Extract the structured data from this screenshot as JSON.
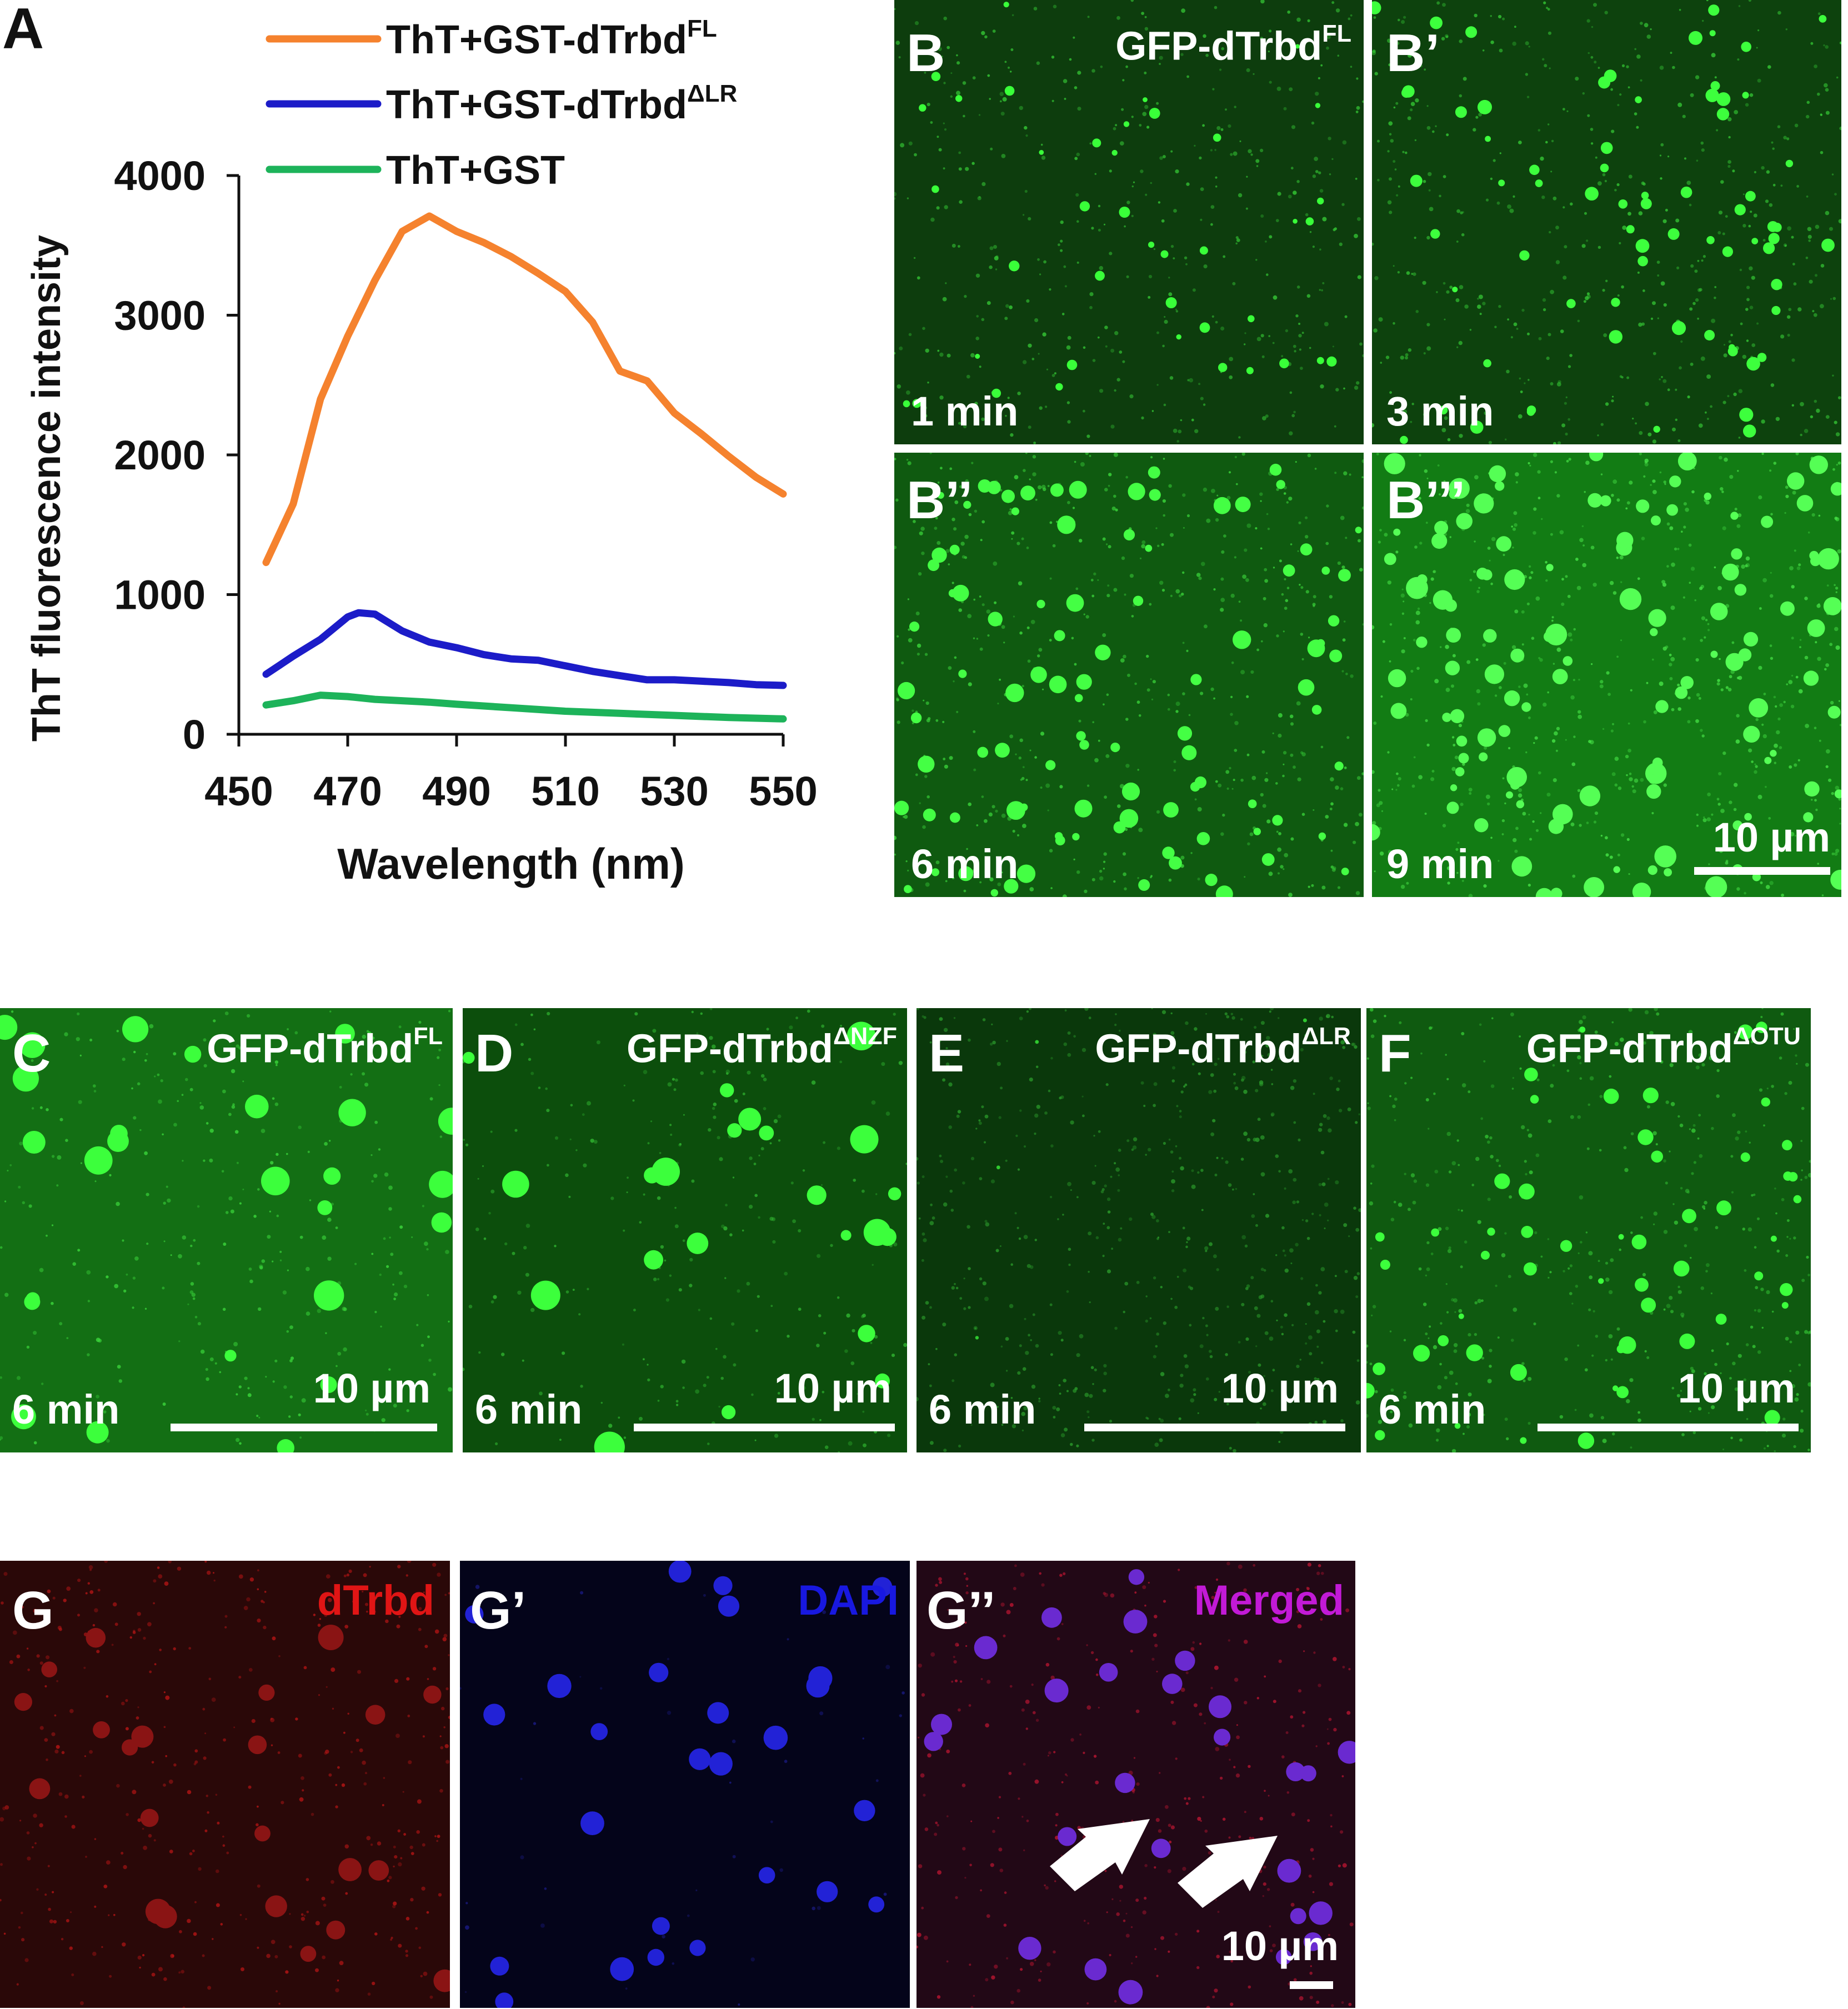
{
  "panelA": {
    "label": "A",
    "chart_data": {
      "type": "line",
      "title": "",
      "xlabel": "Wavelength (nm)",
      "ylabel": "ThT fluorescence intensity",
      "xlim": [
        450,
        550
      ],
      "ylim": [
        0,
        4000
      ],
      "xticks": [
        "450",
        "470",
        "490",
        "510",
        "530",
        "550"
      ],
      "yticks": [
        "0",
        "1000",
        "2000",
        "3000",
        "4000"
      ],
      "legend_position": "top",
      "series": [
        {
          "name": "ThT+GST-dTrbdFL",
          "legend_main": "ThT+GST-dTrbd",
          "legend_sup": "FL",
          "color": "#F5822E",
          "x": [
            455,
            460,
            465,
            470,
            475,
            480,
            485,
            490,
            495,
            500,
            505,
            510,
            515,
            520,
            525,
            530,
            535,
            540,
            545,
            550
          ],
          "y": [
            1230,
            1650,
            2400,
            2850,
            3250,
            3600,
            3710,
            3600,
            3520,
            3420,
            3300,
            3170,
            2950,
            2600,
            2530,
            2300,
            2150,
            1990,
            1840,
            1720
          ]
        },
        {
          "name": "ThT+GST-dTrbdΔLR",
          "legend_main": "ThT+GST-dTrbd",
          "legend_sup": "ΔLR",
          "color": "#1C1CC8",
          "x": [
            455,
            460,
            465,
            470,
            472,
            475,
            480,
            485,
            490,
            495,
            500,
            505,
            510,
            515,
            520,
            525,
            530,
            535,
            540,
            545,
            550
          ],
          "y": [
            430,
            560,
            680,
            840,
            870,
            860,
            740,
            660,
            620,
            570,
            540,
            530,
            490,
            450,
            420,
            390,
            390,
            380,
            370,
            355,
            350
          ]
        },
        {
          "name": "ThT+GST",
          "legend_main": "ThT+GST",
          "legend_sup": "",
          "color": "#1DB35A",
          "x": [
            455,
            460,
            465,
            470,
            475,
            480,
            485,
            490,
            500,
            510,
            520,
            530,
            540,
            550
          ],
          "y": [
            210,
            240,
            280,
            270,
            250,
            240,
            230,
            215,
            190,
            165,
            150,
            135,
            120,
            110
          ]
        }
      ]
    }
  },
  "panelsB": [
    {
      "label": "B",
      "title_main": "GFP-dTrbd",
      "title_sup": "FL",
      "time": "1 min"
    },
    {
      "label": "B’",
      "title_main": "",
      "title_sup": "",
      "time": "3 min"
    },
    {
      "label": "B’’",
      "title_main": "",
      "title_sup": "",
      "time": "6 min"
    },
    {
      "label": "B’’’",
      "title_main": "",
      "title_sup": "",
      "time": "9 min",
      "scale_bar": "10 µm"
    }
  ],
  "panelsCF": [
    {
      "label": "C",
      "title_main": "GFP-dTrbd",
      "title_sup": "FL",
      "time": "6 min",
      "scale_bar": "10 µm"
    },
    {
      "label": "D",
      "title_main": "GFP-dTrbd",
      "title_sup": "ΔNZF",
      "time": "6 min",
      "scale_bar": "10 µm"
    },
    {
      "label": "E",
      "title_main": "GFP-dTrbd",
      "title_sup": "ΔLR",
      "time": "6 min",
      "scale_bar": "10 µm"
    },
    {
      "label": "F",
      "title_main": "GFP-dTrbd",
      "title_sup": "ΔOTU",
      "time": "6 min",
      "scale_bar": "10 µm"
    }
  ],
  "panelsG": [
    {
      "label": "G",
      "channel": "dTrbd",
      "channel_color": "#E01515"
    },
    {
      "label": "G’",
      "channel": "DAPI",
      "channel_color": "#1818E0"
    },
    {
      "label": "G’’",
      "channel": "Merged",
      "channel_color": "#C21AD6",
      "scale_bar": "10 µm"
    }
  ],
  "icons": {
    "arrow": "white-arrow-icon"
  }
}
